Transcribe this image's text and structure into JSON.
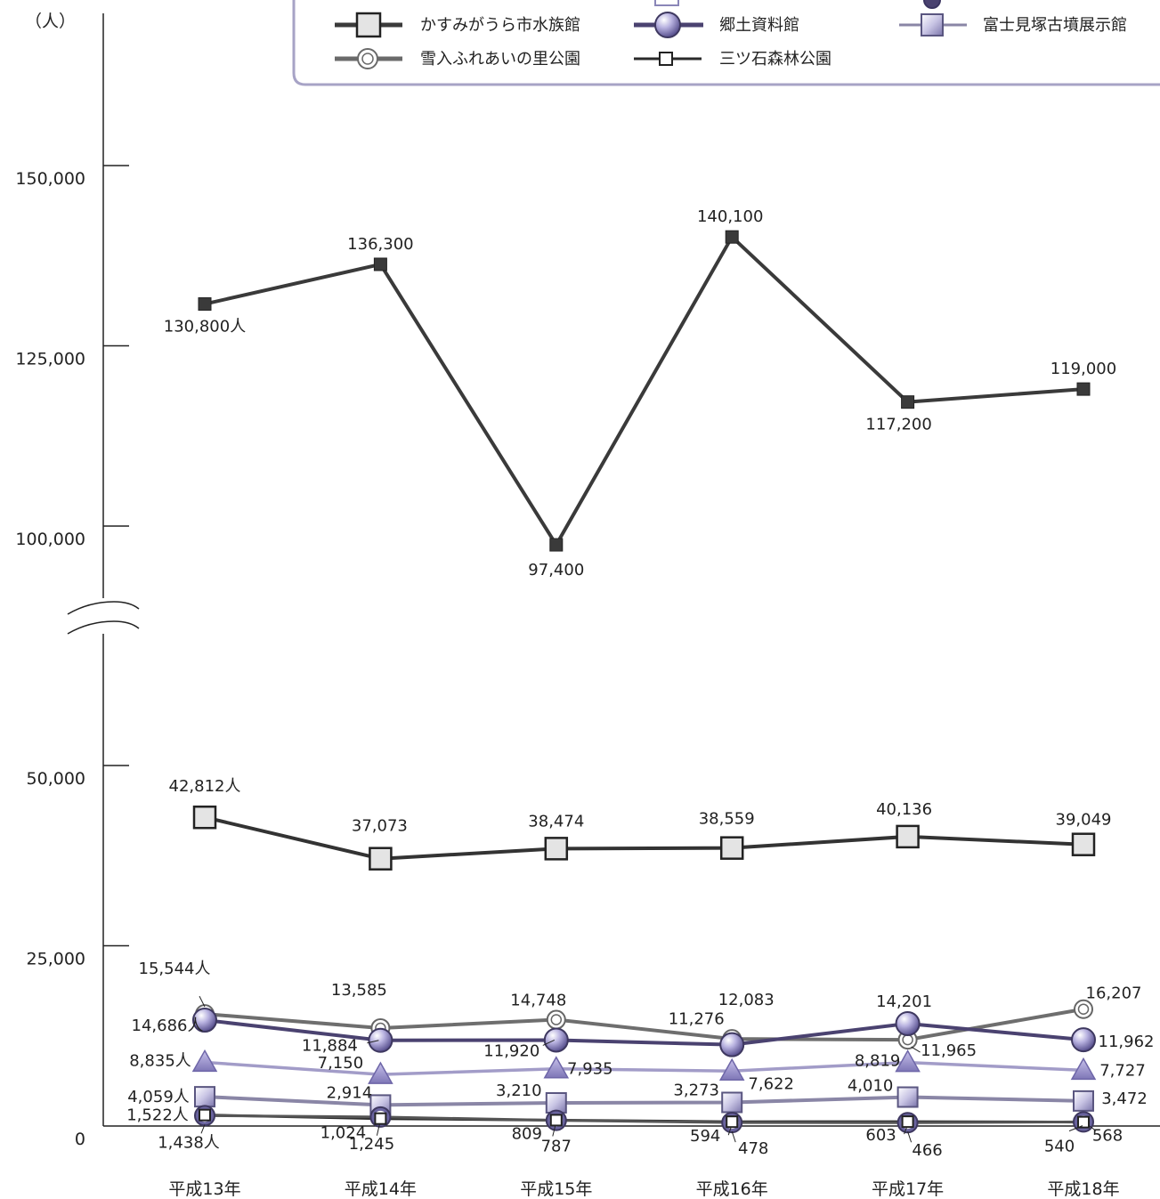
{
  "chart_data": {
    "type": "line",
    "unit_label": "（人）",
    "categories": [
      "平成13年",
      "平成14年",
      "平成15年",
      "平成16年",
      "平成17年",
      "平成18年"
    ],
    "y_ticks_upper": [
      "150,000",
      "125,000",
      "100,000"
    ],
    "y_ticks_lower": [
      "50,000",
      "25,000",
      "0"
    ],
    "y_tick_values_upper": [
      150000,
      125000,
      100000
    ],
    "y_tick_values_lower": [
      50000,
      25000,
      0
    ],
    "axis_break": true,
    "legend": [
      {
        "name": "かすみがうら市水族館",
        "marker": "square-large",
        "color": "#3a3a3a"
      },
      {
        "name": "郷土資料館",
        "marker": "circle-purple",
        "color": "#4a4270"
      },
      {
        "name": "富士見塚古墳展示館",
        "marker": "square-purple",
        "color": "#8a86a6"
      },
      {
        "name": "雪入ふれあいの里公園",
        "marker": "double-circle",
        "color": "#6a6a6a"
      },
      {
        "name": "三ツ石森林公園",
        "marker": "square-small-white",
        "color": "#2a2a2a"
      }
    ],
    "series": [
      {
        "name": "",
        "marker": "square-dark",
        "color": "#3a3a3a",
        "values": [
          130800,
          136300,
          97400,
          140100,
          117200,
          119000
        ],
        "labels": [
          "130,800人",
          "136,300",
          "97,400",
          "140,100",
          "117,200",
          "119,000"
        ]
      },
      {
        "name": "かすみがうら市水族館",
        "marker": "square-large",
        "color": "#3a3a3a",
        "values": [
          42812,
          37073,
          38474,
          38559,
          40136,
          39049
        ],
        "labels": [
          "42,812人",
          "37,073",
          "38,474",
          "38,559",
          "40,136",
          "39,049"
        ]
      },
      {
        "name": "雪入ふれあいの里公園",
        "marker": "double-circle",
        "color": "#6a6a6a",
        "values": [
          15544,
          13585,
          14748,
          12083,
          11965,
          16207
        ],
        "labels": [
          "15,544人",
          "13,585",
          "14,748",
          "12,083",
          "11,965",
          "16,207"
        ]
      },
      {
        "name": "郷土資料館",
        "marker": "circle-purple",
        "color": "#4a4270",
        "values": [
          14686,
          11884,
          11920,
          11276,
          14201,
          11962
        ],
        "labels": [
          "14,686人",
          "11,884",
          "11,920",
          "11,276",
          "14,201",
          "11,962"
        ]
      },
      {
        "name": "",
        "marker": "triangle",
        "color": "#9a94c4",
        "values": [
          8835,
          7150,
          7935,
          7622,
          8819,
          7727
        ],
        "labels": [
          "8,835人",
          "7,150",
          "7,935",
          "7,622",
          "8,819",
          "7,727"
        ]
      },
      {
        "name": "富士見塚古墳展示館",
        "marker": "square-purple",
        "color": "#8a86a6",
        "values": [
          4059,
          2914,
          3210,
          3273,
          4010,
          3472
        ],
        "labels": [
          "4,059人",
          "2,914",
          "3,210",
          "3,273",
          "4,010",
          "3,472"
        ]
      },
      {
        "name": "三ツ石森林公園",
        "marker": "square-small-white",
        "color": "#2a2a2a",
        "values": [
          1522,
          1024,
          809,
          594,
          603,
          540
        ],
        "labels": [
          "1,522人",
          "1,024",
          "809",
          "594",
          "603",
          "540"
        ]
      },
      {
        "name": "",
        "marker": "circle-ring",
        "color": "#3e3860",
        "values": [
          1438,
          1245,
          787,
          478,
          466,
          568
        ],
        "labels": [
          "1,438人",
          "1,245",
          "787",
          "478",
          "466",
          "568"
        ]
      }
    ]
  }
}
